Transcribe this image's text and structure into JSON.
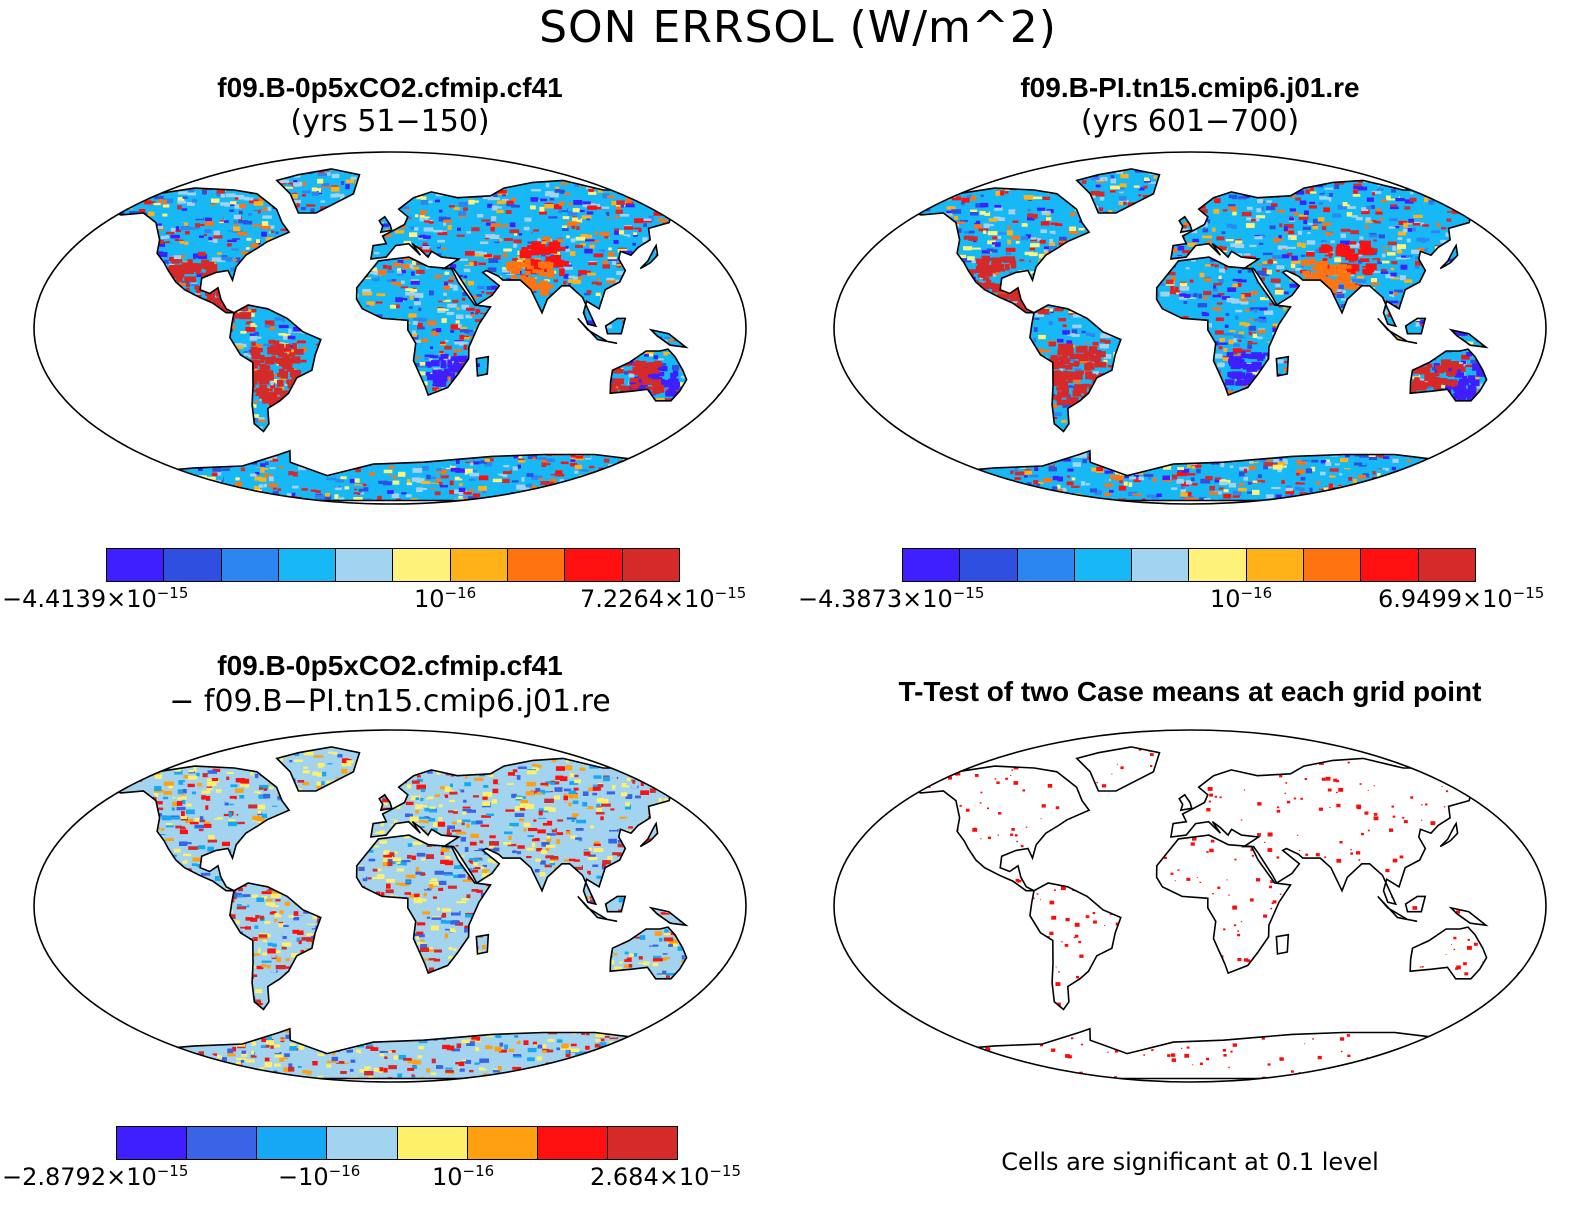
{
  "figure_title": "SON ERRSOL (W/m^2)",
  "palette10": [
    "#3f1fff",
    "#2f4fe0",
    "#2b86f2",
    "#16b8f5",
    "#a2d4f0",
    "#fff27a",
    "#ffb218",
    "#ff7410",
    "#ff0f0f",
    "#d62a2a"
  ],
  "palette8": [
    "#3f1fff",
    "#3a64e8",
    "#16a8f5",
    "#a2d4f0",
    "#fff06a",
    "#ffa010",
    "#ff1010",
    "#d62a2a"
  ],
  "panels": [
    {
      "title": "f09.B-0p5xCO2.cfmip.cf41",
      "subtitle": "(yrs 51−150)",
      "map_name": "map-case1",
      "colorbar": {
        "labels": [
          {
            "mant": "−4.4139×10",
            "exp": "−15"
          },
          {
            "mant": "10",
            "exp": "−16"
          },
          {
            "mant": "7.2264×10",
            "exp": "−15"
          }
        ]
      }
    },
    {
      "title": "f09.B-PI.tn15.cmip6.j01.re",
      "subtitle": "(yrs 601−700)",
      "map_name": "map-case2",
      "colorbar": {
        "labels": [
          {
            "mant": "−4.3873×10",
            "exp": "−15"
          },
          {
            "mant": "10",
            "exp": "−16"
          },
          {
            "mant": "6.9499×10",
            "exp": "−15"
          }
        ]
      }
    },
    {
      "title": "f09.B-0p5xCO2.cfmip.cf41",
      "subtitle": "− f09.B−PI.tn15.cmip6.j01.re",
      "map_name": "map-difference",
      "colorbar": {
        "labels": [
          {
            "mant": "−2.8792×10",
            "exp": "−15"
          },
          {
            "mant": "−10",
            "exp": "−16"
          },
          {
            "mant": "10",
            "exp": "−16"
          },
          {
            "mant": "2.684×10",
            "exp": "−15"
          }
        ]
      }
    },
    {
      "title": "T-Test of two Case means at each grid point",
      "map_name": "map-ttest",
      "note": "Cells are significant at 0.1 level"
    }
  ]
}
